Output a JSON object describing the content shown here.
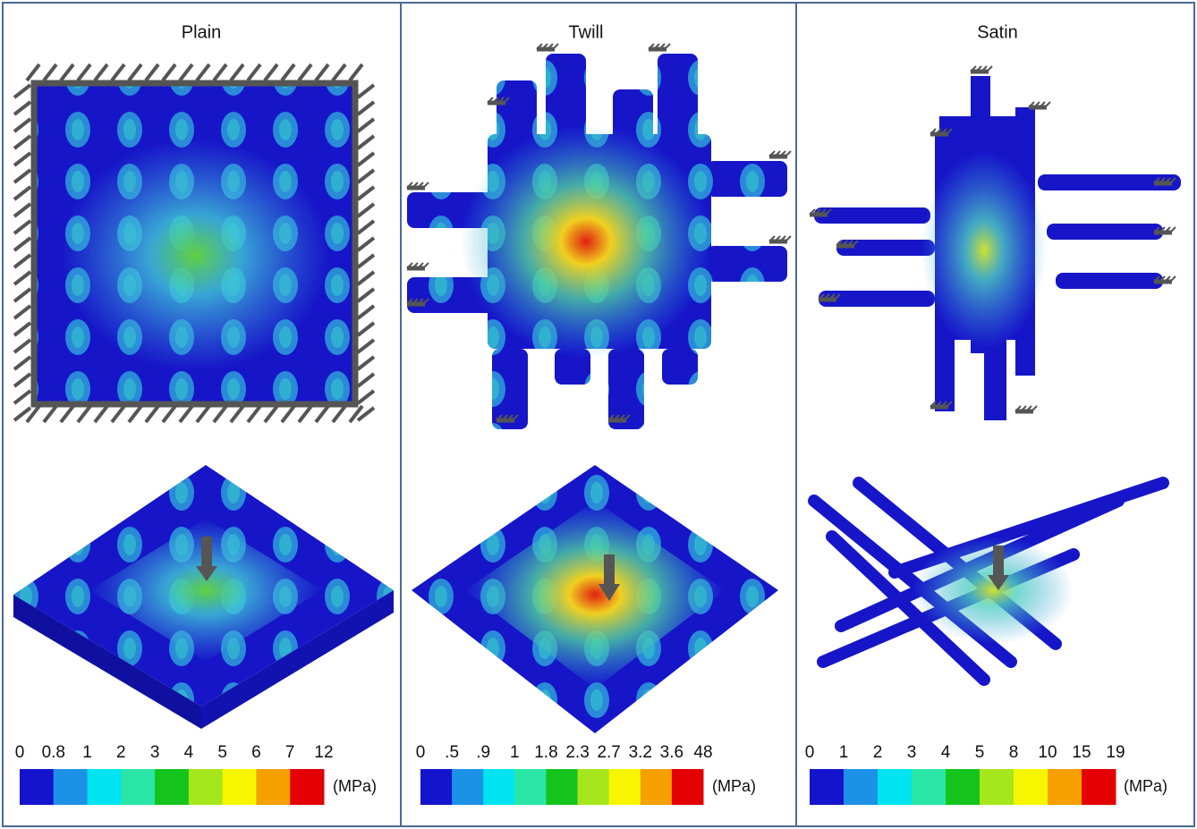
{
  "panels": [
    {
      "title": "Plain",
      "legend": {
        "labels": [
          "0",
          "0.8",
          "1",
          "2",
          "3",
          "4",
          "5",
          "6",
          "7",
          "12"
        ],
        "unit": "(MPa)"
      }
    },
    {
      "title": "Twill",
      "legend": {
        "labels": [
          "0",
          ".5",
          ".9",
          "1",
          "1.8",
          "2.3",
          "2.7",
          "3.2",
          "3.6",
          "48"
        ],
        "unit": "(MPa)"
      }
    },
    {
      "title": "Satin",
      "legend": {
        "labels": [
          "0",
          "1",
          "2",
          "3",
          "4",
          "5",
          "8",
          "10",
          "15",
          "19"
        ],
        "unit": "(MPa)"
      }
    }
  ],
  "colorbar_colors": [
    "#1414cc",
    "#1c92e6",
    "#00e4f2",
    "#2ae6a6",
    "#14c41c",
    "#a6e61c",
    "#f6f600",
    "#f6a000",
    "#e40000"
  ]
}
